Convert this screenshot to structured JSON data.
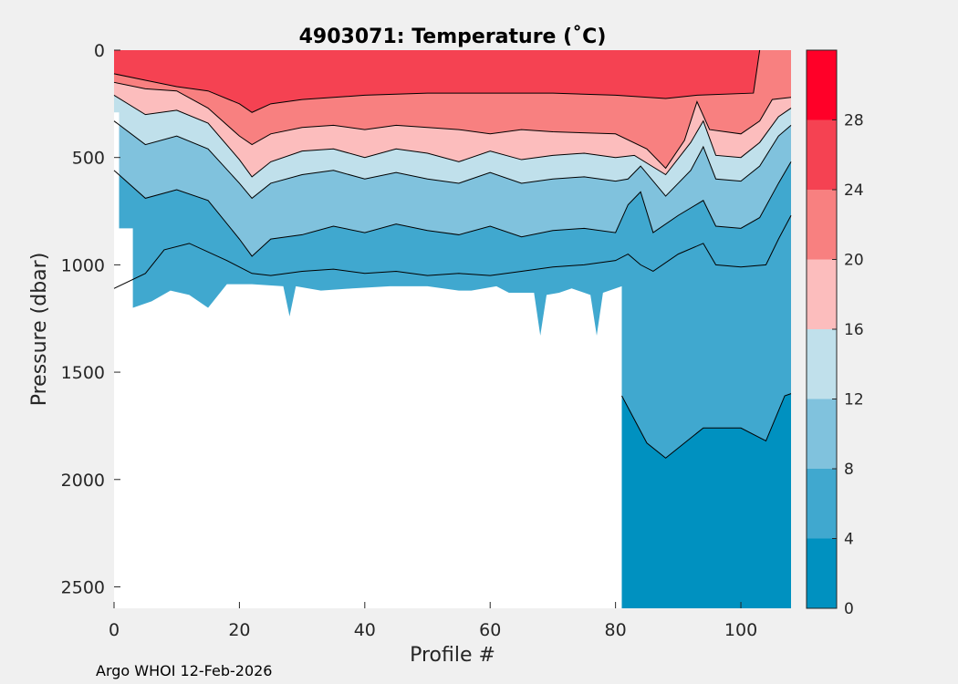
{
  "chart_data": {
    "type": "heatmap",
    "title": "4903071:  Temperature (˚C)",
    "xlabel": "Profile #",
    "ylabel": "Pressure (dbar)",
    "xlim": [
      0,
      108
    ],
    "ylim": [
      0,
      2600
    ],
    "y_reversed": true,
    "xticks": [
      "0",
      "20",
      "40",
      "60",
      "80",
      "100"
    ],
    "xtick_values": [
      0,
      20,
      40,
      60,
      80,
      100
    ],
    "yticks": [
      "0",
      "500",
      "1000",
      "1500",
      "2000",
      "2500"
    ],
    "ytick_values": [
      0,
      500,
      1000,
      1500,
      2000,
      2500
    ],
    "colorbar": {
      "range": [
        0,
        32
      ],
      "ticks": [
        "0",
        "4",
        "8",
        "12",
        "16",
        "20",
        "24",
        "28"
      ],
      "tick_values": [
        0,
        4,
        8,
        12,
        16,
        20,
        24,
        28
      ],
      "levels": [
        {
          "from": 0,
          "to": 4,
          "color": "#0091c0"
        },
        {
          "from": 4,
          "to": 8,
          "color": "#40a8cf"
        },
        {
          "from": 8,
          "to": 12,
          "color": "#80c2dd"
        },
        {
          "from": 12,
          "to": 16,
          "color": "#c0e0eb"
        },
        {
          "from": 16,
          "to": 20,
          "color": "#fcbdbd"
        },
        {
          "from": 20,
          "to": 24,
          "color": "#f88080"
        },
        {
          "from": 24,
          "to": 28,
          "color": "#f54252"
        },
        {
          "from": 28,
          "to": 32,
          "color": "#ff0028"
        }
      ]
    },
    "isotherms": [
      {
        "temp": 24,
        "points": [
          [
            0,
            110
          ],
          [
            5,
            140
          ],
          [
            10,
            170
          ],
          [
            15,
            190
          ],
          [
            20,
            250
          ],
          [
            22,
            290
          ],
          [
            25,
            250
          ],
          [
            30,
            230
          ],
          [
            40,
            210
          ],
          [
            50,
            200
          ],
          [
            60,
            200
          ],
          [
            70,
            200
          ],
          [
            80,
            210
          ],
          [
            88,
            225
          ],
          [
            93,
            210
          ],
          [
            102,
            200
          ],
          [
            103,
            0
          ]
        ]
      },
      {
        "temp": 20,
        "points": [
          [
            0,
            150
          ],
          [
            5,
            180
          ],
          [
            10,
            190
          ],
          [
            15,
            270
          ],
          [
            20,
            400
          ],
          [
            22,
            440
          ],
          [
            25,
            390
          ],
          [
            30,
            360
          ],
          [
            35,
            350
          ],
          [
            40,
            370
          ],
          [
            45,
            350
          ],
          [
            50,
            360
          ],
          [
            55,
            370
          ],
          [
            60,
            390
          ],
          [
            65,
            370
          ],
          [
            70,
            380
          ],
          [
            80,
            390
          ],
          [
            85,
            460
          ],
          [
            88,
            550
          ],
          [
            91,
            420
          ],
          [
            93,
            240
          ],
          [
            95,
            370
          ],
          [
            100,
            390
          ],
          [
            103,
            330
          ],
          [
            105,
            230
          ],
          [
            108,
            220
          ]
        ]
      },
      {
        "temp": 16,
        "points": [
          [
            0,
            210
          ],
          [
            5,
            300
          ],
          [
            10,
            280
          ],
          [
            15,
            340
          ],
          [
            20,
            510
          ],
          [
            22,
            590
          ],
          [
            25,
            520
          ],
          [
            30,
            470
          ],
          [
            35,
            460
          ],
          [
            40,
            500
          ],
          [
            45,
            460
          ],
          [
            50,
            480
          ],
          [
            55,
            520
          ],
          [
            60,
            470
          ],
          [
            65,
            510
          ],
          [
            70,
            490
          ],
          [
            75,
            480
          ],
          [
            80,
            500
          ],
          [
            83,
            490
          ],
          [
            88,
            580
          ],
          [
            92,
            430
          ],
          [
            94,
            330
          ],
          [
            96,
            490
          ],
          [
            100,
            500
          ],
          [
            103,
            430
          ],
          [
            106,
            310
          ],
          [
            108,
            270
          ]
        ]
      },
      {
        "temp": 12,
        "points": [
          [
            0,
            330
          ],
          [
            5,
            440
          ],
          [
            10,
            400
          ],
          [
            15,
            460
          ],
          [
            20,
            620
          ],
          [
            22,
            690
          ],
          [
            25,
            620
          ],
          [
            30,
            580
          ],
          [
            35,
            560
          ],
          [
            40,
            600
          ],
          [
            45,
            570
          ],
          [
            50,
            600
          ],
          [
            55,
            620
          ],
          [
            60,
            570
          ],
          [
            65,
            620
          ],
          [
            70,
            600
          ],
          [
            75,
            590
          ],
          [
            80,
            610
          ],
          [
            82,
            600
          ],
          [
            84,
            540
          ],
          [
            88,
            680
          ],
          [
            92,
            560
          ],
          [
            94,
            450
          ],
          [
            96,
            600
          ],
          [
            100,
            610
          ],
          [
            103,
            540
          ],
          [
            106,
            400
          ],
          [
            108,
            350
          ]
        ]
      },
      {
        "temp": 8,
        "points": [
          [
            0,
            560
          ],
          [
            5,
            690
          ],
          [
            10,
            650
          ],
          [
            15,
            700
          ],
          [
            20,
            880
          ],
          [
            22,
            960
          ],
          [
            25,
            880
          ],
          [
            30,
            860
          ],
          [
            35,
            820
          ],
          [
            40,
            850
          ],
          [
            45,
            810
          ],
          [
            50,
            840
          ],
          [
            55,
            860
          ],
          [
            60,
            820
          ],
          [
            65,
            870
          ],
          [
            70,
            840
          ],
          [
            75,
            830
          ],
          [
            80,
            850
          ],
          [
            82,
            720
          ],
          [
            84,
            660
          ],
          [
            86,
            850
          ],
          [
            90,
            770
          ],
          [
            94,
            700
          ],
          [
            96,
            820
          ],
          [
            100,
            830
          ],
          [
            103,
            780
          ],
          [
            106,
            620
          ],
          [
            108,
            520
          ]
        ]
      },
      {
        "temp": 4,
        "points": [
          [
            0,
            1110
          ],
          [
            5,
            1040
          ],
          [
            8,
            930
          ],
          [
            12,
            900
          ],
          [
            18,
            980
          ],
          [
            22,
            1040
          ],
          [
            25,
            1050
          ],
          [
            30,
            1030
          ],
          [
            35,
            1020
          ],
          [
            40,
            1040
          ],
          [
            45,
            1030
          ],
          [
            50,
            1050
          ],
          [
            55,
            1040
          ],
          [
            60,
            1050
          ],
          [
            65,
            1030
          ],
          [
            70,
            1010
          ],
          [
            75,
            1000
          ],
          [
            80,
            980
          ],
          [
            82,
            950
          ],
          [
            84,
            1000
          ],
          [
            86,
            1030
          ],
          [
            90,
            950
          ],
          [
            94,
            900
          ],
          [
            96,
            1000
          ],
          [
            100,
            1010
          ],
          [
            104,
            1000
          ],
          [
            106,
            880
          ],
          [
            108,
            770
          ]
        ]
      },
      {
        "temp": 2,
        "points": [
          [
            81,
            1610
          ],
          [
            85,
            1830
          ],
          [
            88,
            1900
          ],
          [
            91,
            1830
          ],
          [
            94,
            1760
          ],
          [
            97,
            1760
          ],
          [
            100,
            1760
          ],
          [
            104,
            1820
          ],
          [
            107,
            1610
          ],
          [
            108,
            1600
          ]
        ]
      }
    ],
    "data_floor": [
      [
        0,
        290
      ],
      [
        0.8,
        290
      ],
      [
        0.8,
        830
      ],
      [
        3,
        830
      ],
      [
        3,
        1200
      ],
      [
        6,
        1170
      ],
      [
        9,
        1120
      ],
      [
        12,
        1140
      ],
      [
        15,
        1200
      ],
      [
        18,
        1090
      ],
      [
        22,
        1090
      ],
      [
        27,
        1100
      ],
      [
        28,
        1240
      ],
      [
        29,
        1100
      ],
      [
        33,
        1120
      ],
      [
        38,
        1110
      ],
      [
        44,
        1100
      ],
      [
        50,
        1100
      ],
      [
        55,
        1120
      ],
      [
        57,
        1120
      ],
      [
        61,
        1100
      ],
      [
        63,
        1130
      ],
      [
        67,
        1130
      ],
      [
        68,
        1330
      ],
      [
        69,
        1140
      ],
      [
        71,
        1130
      ],
      [
        73,
        1110
      ],
      [
        76,
        1140
      ],
      [
        77,
        1330
      ],
      [
        78,
        1130
      ],
      [
        80,
        1110
      ],
      [
        81,
        1100
      ],
      [
        81,
        2600
      ],
      [
        108,
        2600
      ]
    ]
  },
  "footer": "Argo WHOI 12-Feb-2026"
}
